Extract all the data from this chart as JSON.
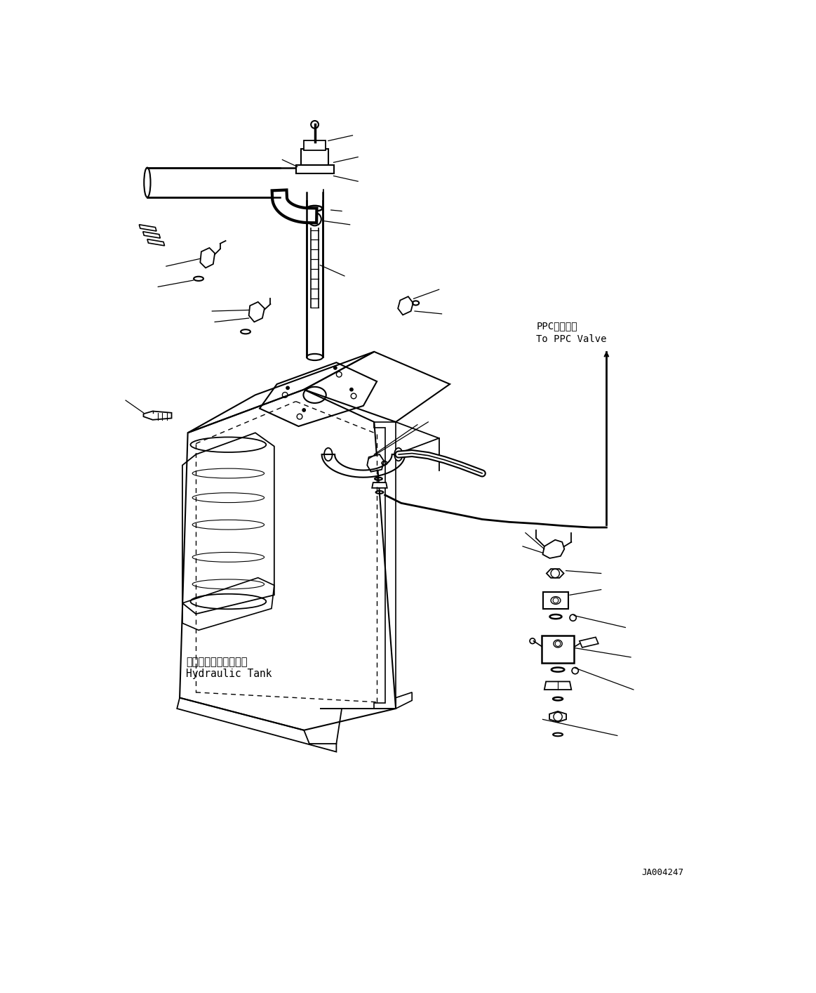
{
  "background_color": "#ffffff",
  "figsize": [
    11.63,
    14.14
  ],
  "dpi": 100,
  "annotation_bottom_right": "JA004247",
  "label_hydraulic_tank_jp": "ハイドロリックタンク",
  "label_hydraulic_tank_en": "Hydraulic Tank",
  "label_ppc_valve_jp": "PPCバルブへ",
  "label_ppc_valve_en": "To PPC Valve"
}
